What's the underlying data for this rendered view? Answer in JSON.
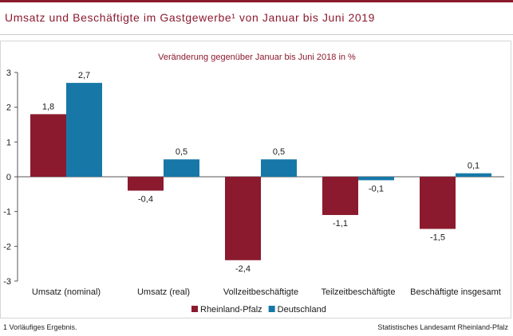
{
  "header": {
    "title": "Umsatz und Beschäftigte im Gastgewerbe¹ von Januar bis Juni 2019"
  },
  "chart_data": {
    "type": "bar",
    "subtitle": "Veränderung gegenüber Januar bis Juni 2018 in %",
    "categories": [
      "Umsatz (nominal)",
      "Umsatz (real)",
      "Vollzeitbeschäftigte",
      "Teilzeitbeschäftigte",
      "Beschäftigte insgesamt"
    ],
    "series": [
      {
        "name": "Rheinland-Pfalz",
        "color": "#8b1a2e",
        "values": [
          1.8,
          -0.4,
          -2.4,
          -1.1,
          -1.5
        ],
        "labels": [
          "1,8",
          "-0,4",
          "-2,4",
          "-1,1",
          "-1,5"
        ]
      },
      {
        "name": "Deutschland",
        "color": "#1778a8",
        "values": [
          2.7,
          0.5,
          0.5,
          -0.1,
          0.1
        ],
        "labels": [
          "2,7",
          "0,5",
          "0,5",
          "-0,1",
          "0,1"
        ]
      }
    ],
    "ylim": [
      -3,
      3
    ],
    "yticks": [
      3,
      2,
      1,
      0,
      -1,
      -2,
      -3
    ],
    "ytick_labels": [
      "3",
      "2",
      "1",
      "0",
      "-1",
      "-2",
      "-3"
    ],
    "legend_position": "bottom"
  },
  "footer": {
    "footnote": "1 Vorläufiges Ergebnis.",
    "source": "Statistisches Landesamt Rheinland-Pfalz"
  }
}
